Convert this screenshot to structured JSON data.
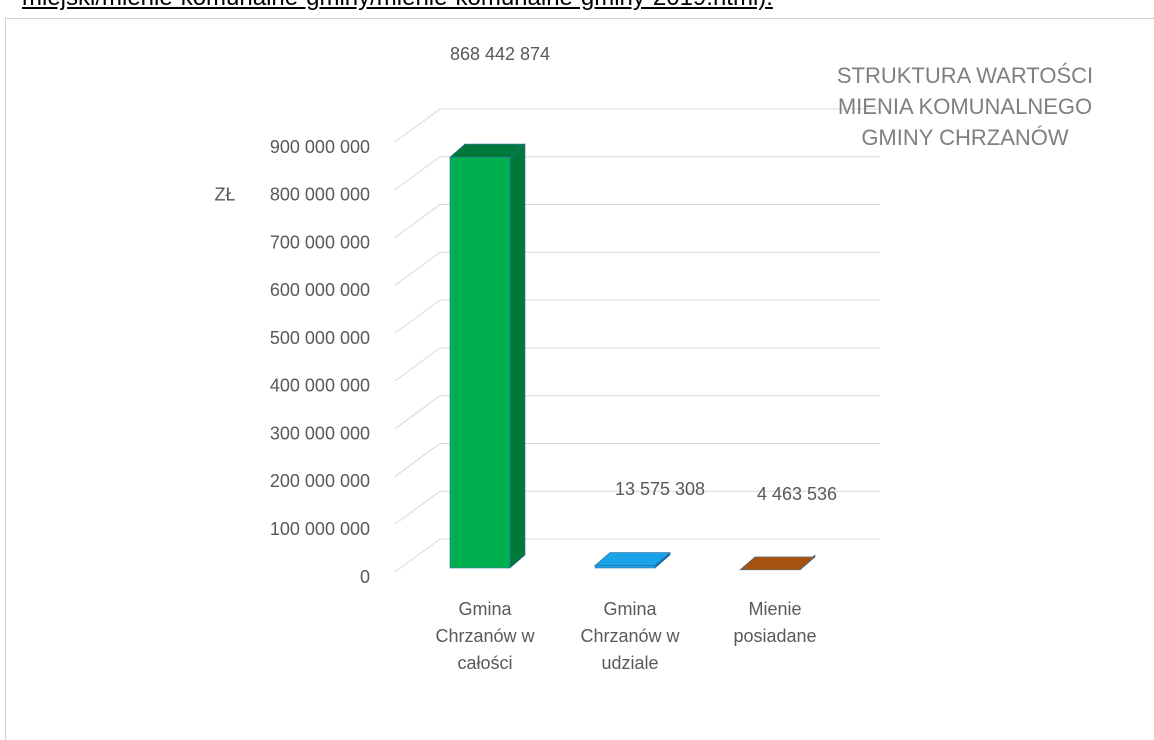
{
  "header_text": "miejski/mienie-komunalne-gminy/mienie-komunalne-gminy-2019.html).",
  "chart_data": {
    "type": "bar3d",
    "title": "STRUKTURA  WARTOŚCI MIENIA KOMUNALNEGO GMINY CHRZANÓW",
    "ylabel": "ZŁ",
    "categories": [
      "Gmina Chrzanów w całości",
      "Gmina Chrzanów w udziale",
      "Mienie posiadane"
    ],
    "values": [
      868442874,
      13575308,
      4463536
    ],
    "value_labels": [
      "868 442 874",
      "13 575 308",
      "4 463 536"
    ],
    "colors": [
      "#00b050",
      "#1aa3e8",
      "#a5520f"
    ],
    "side_colors": [
      "#00783a",
      "#0d6fa3",
      "#6e360a"
    ],
    "ylim": [
      0,
      900000000
    ],
    "yticks": [
      0,
      {
        "value": 100000000,
        "label": "100 000 000"
      },
      {
        "value": 200000000,
        "label": "200 000 000"
      },
      {
        "value": 300000000,
        "label": "300 000 000"
      },
      {
        "value": 400000000,
        "label": "400 000 000"
      },
      {
        "value": 500000000,
        "label": "500 000 000"
      },
      {
        "value": 600000000,
        "label": "600 000 000"
      },
      {
        "value": 700000000,
        "label": "700 000 000"
      },
      {
        "value": 800000000,
        "label": "800 000 000"
      },
      {
        "value": 900000000,
        "label": "900 000 000"
      }
    ],
    "grid": true
  }
}
